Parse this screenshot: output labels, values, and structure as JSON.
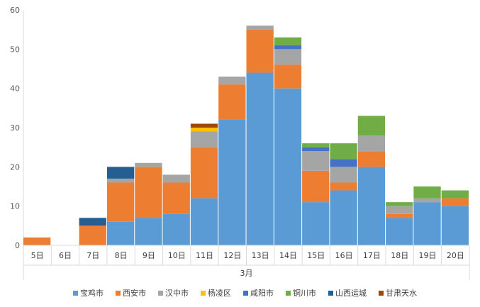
{
  "chart_data": {
    "type": "bar",
    "stacked": true,
    "categories": [
      "5日",
      "6日",
      "7日",
      "8日",
      "9日",
      "10日",
      "11日",
      "12日",
      "13日",
      "14日",
      "15日",
      "16日",
      "17日",
      "18日",
      "19日",
      "20日"
    ],
    "group_label": "3月",
    "ylim": [
      0,
      60
    ],
    "yticks": [
      0,
      10,
      20,
      30,
      40,
      50,
      60
    ],
    "grid": false,
    "legend_position": "bottom",
    "series": [
      {
        "name": "宝鸡市",
        "color": "#5b9bd5",
        "values": [
          0,
          0,
          0,
          6,
          7,
          8,
          12,
          32,
          44,
          40,
          11,
          14,
          20,
          7,
          11,
          10
        ]
      },
      {
        "name": "西安市",
        "color": "#ed7d31",
        "values": [
          2,
          0,
          5,
          10,
          13,
          8,
          13,
          9,
          11,
          6,
          8,
          2,
          4,
          1,
          0,
          2
        ]
      },
      {
        "name": "汉中市",
        "color": "#a5a5a5",
        "values": [
          0,
          0,
          0,
          1,
          1,
          2,
          4,
          2,
          1,
          4,
          5,
          4,
          4,
          2,
          1,
          0
        ]
      },
      {
        "name": "杨凌区",
        "color": "#ffc000",
        "values": [
          0,
          0,
          0,
          0,
          0,
          0,
          1,
          0,
          0,
          0,
          0,
          0,
          0,
          0,
          0,
          0
        ]
      },
      {
        "name": "咸阳市",
        "color": "#4472c4",
        "values": [
          0,
          0,
          0,
          0,
          0,
          0,
          0,
          0,
          0,
          1,
          1,
          2,
          0,
          0,
          0,
          0
        ]
      },
      {
        "name": "铜川市",
        "color": "#70ad47",
        "values": [
          0,
          0,
          0,
          0,
          0,
          0,
          0,
          0,
          0,
          2,
          1,
          4,
          5,
          1,
          3,
          2
        ]
      },
      {
        "name": "山西运城",
        "color": "#255e91",
        "values": [
          0,
          0,
          2,
          3,
          0,
          0,
          0,
          0,
          0,
          0,
          0,
          0,
          0,
          0,
          0,
          0
        ]
      },
      {
        "name": "甘肃天水",
        "color": "#9e480e",
        "values": [
          0,
          0,
          0,
          0,
          0,
          0,
          1,
          0,
          0,
          0,
          0,
          0,
          0,
          0,
          0,
          0
        ]
      }
    ]
  }
}
